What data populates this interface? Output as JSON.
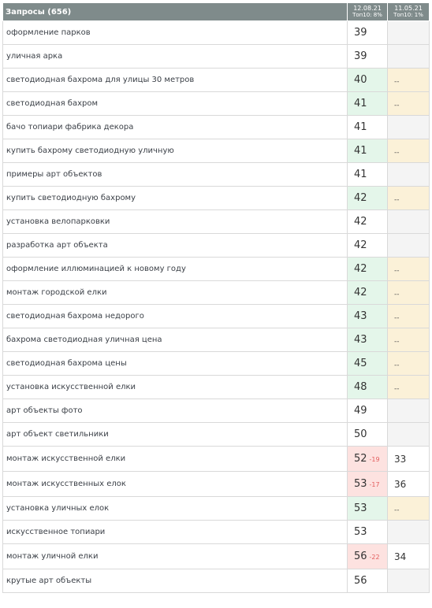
{
  "header": {
    "title": "Запросы (656)",
    "dates": [
      {
        "date": "12.08.21",
        "top": "Топ10: 8%"
      },
      {
        "date": "11.05.21",
        "top": "Топ10: 1%"
      }
    ]
  },
  "colors": {
    "header_bg": "#7f8b8b",
    "improved": "#e4f6ea",
    "dropped": "#fde2e0",
    "new_dash": "#fbf1d8",
    "empty": "#f4f4f4",
    "change_text": "#e35d5d"
  },
  "rows": [
    {
      "query": "оформление парков",
      "pos": "39",
      "change": "",
      "prev": "",
      "pos_state": "white",
      "prev_state": "gray"
    },
    {
      "query": "уличная арка",
      "pos": "39",
      "change": "",
      "prev": "",
      "pos_state": "white",
      "prev_state": "gray"
    },
    {
      "query": "светодиодная бахрома для улицы 30 метров",
      "pos": "40",
      "change": "",
      "prev": "--",
      "pos_state": "green",
      "prev_state": "yellow"
    },
    {
      "query": "светодиодная бахром",
      "pos": "41",
      "change": "",
      "prev": "--",
      "pos_state": "green",
      "prev_state": "yellow"
    },
    {
      "query": "бачо топиари фабрика декора",
      "pos": "41",
      "change": "",
      "prev": "",
      "pos_state": "white",
      "prev_state": "gray"
    },
    {
      "query": "купить бахрому светодиодную уличную",
      "pos": "41",
      "change": "",
      "prev": "--",
      "pos_state": "green",
      "prev_state": "yellow"
    },
    {
      "query": "примеры арт объектов",
      "pos": "41",
      "change": "",
      "prev": "",
      "pos_state": "white",
      "prev_state": "gray"
    },
    {
      "query": "купить светодиодную бахрому",
      "pos": "42",
      "change": "",
      "prev": "--",
      "pos_state": "green",
      "prev_state": "yellow"
    },
    {
      "query": "установка велопарковки",
      "pos": "42",
      "change": "",
      "prev": "",
      "pos_state": "white",
      "prev_state": "gray"
    },
    {
      "query": "разработка арт объекта",
      "pos": "42",
      "change": "",
      "prev": "",
      "pos_state": "white",
      "prev_state": "gray"
    },
    {
      "query": "оформление иллюминацией к новому году",
      "pos": "42",
      "change": "",
      "prev": "--",
      "pos_state": "green",
      "prev_state": "yellow"
    },
    {
      "query": "монтаж городской елки",
      "pos": "42",
      "change": "",
      "prev": "--",
      "pos_state": "green",
      "prev_state": "yellow"
    },
    {
      "query": "светодиодная бахрома недорого",
      "pos": "43",
      "change": "",
      "prev": "--",
      "pos_state": "green",
      "prev_state": "yellow"
    },
    {
      "query": "бахрома светодиодная уличная цена",
      "pos": "43",
      "change": "",
      "prev": "--",
      "pos_state": "green",
      "prev_state": "yellow"
    },
    {
      "query": "светодиодная бахрома цены",
      "pos": "45",
      "change": "",
      "prev": "--",
      "pos_state": "green",
      "prev_state": "yellow"
    },
    {
      "query": "установка искусственной елки",
      "pos": "48",
      "change": "",
      "prev": "--",
      "pos_state": "green",
      "prev_state": "yellow"
    },
    {
      "query": "арт объекты фото",
      "pos": "49",
      "change": "",
      "prev": "",
      "pos_state": "white",
      "prev_state": "gray"
    },
    {
      "query": "арт объект светильники",
      "pos": "50",
      "change": "",
      "prev": "",
      "pos_state": "white",
      "prev_state": "gray"
    },
    {
      "query": "монтаж искусственной елки",
      "pos": "52",
      "change": "-19",
      "prev": "33",
      "pos_state": "red",
      "prev_state": "white"
    },
    {
      "query": "монтаж искусственных елок",
      "pos": "53",
      "change": "-17",
      "prev": "36",
      "pos_state": "red",
      "prev_state": "white"
    },
    {
      "query": "установка уличных елок",
      "pos": "53",
      "change": "",
      "prev": "--",
      "pos_state": "green",
      "prev_state": "yellow"
    },
    {
      "query": "искусственное топиари",
      "pos": "53",
      "change": "",
      "prev": "",
      "pos_state": "white",
      "prev_state": "gray"
    },
    {
      "query": "монтаж уличной елки",
      "pos": "56",
      "change": "-22",
      "prev": "34",
      "pos_state": "red",
      "prev_state": "white"
    },
    {
      "query": "крутые арт объекты",
      "pos": "56",
      "change": "",
      "prev": "",
      "pos_state": "white",
      "prev_state": "gray"
    }
  ]
}
